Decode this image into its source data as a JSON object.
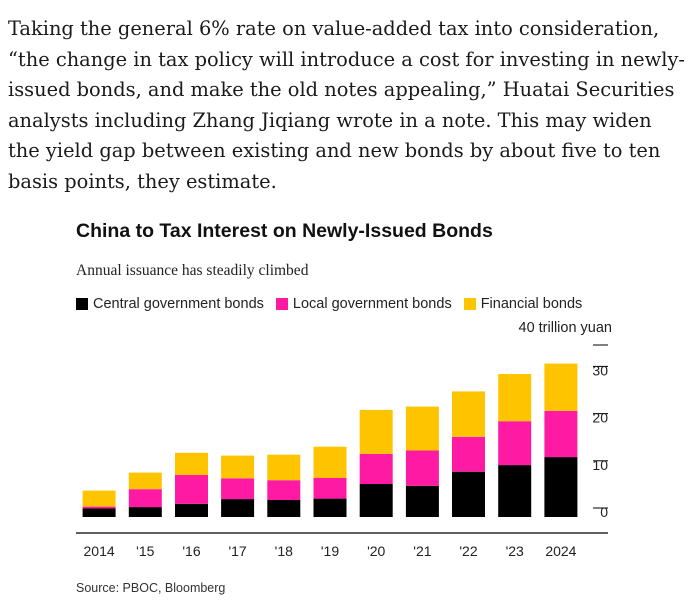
{
  "article": {
    "paragraph": "Taking the general 6% rate on value-added tax into consideration, “the change in tax policy will introduce a cost for investing in newly-issued bonds, and make the old notes appealing,” Huatai Securities analysts including Zhang Jiqiang wrote in a note. This may widen the yield gap between existing and new bonds by about five to ten basis points, they estimate."
  },
  "chart_data": {
    "type": "bar",
    "stacked": true,
    "title": "China to Tax Interest on Newly-Issued Bonds",
    "subtitle": "Annual issuance has steadily climbed",
    "unit_label": "40 trillion yuan",
    "categories": [
      "2014",
      "'15",
      "'16",
      "'17",
      "'18",
      "'19",
      "'20",
      "'21",
      "'22",
      "'23",
      "2024"
    ],
    "series": [
      {
        "name": "Central government bonds",
        "color": "#000000",
        "values": [
          1.8,
          2.1,
          2.8,
          3.8,
          3.6,
          3.9,
          7.0,
          6.6,
          9.6,
          11.0,
          12.7
        ]
      },
      {
        "name": "Local government bonds",
        "color": "#ff1aa3",
        "values": [
          0.4,
          3.8,
          6.1,
          4.4,
          4.2,
          4.4,
          6.4,
          7.5,
          7.4,
          9.3,
          9.8
        ]
      },
      {
        "name": "Financial bonds",
        "color": "#ffc400",
        "values": [
          3.4,
          3.5,
          4.7,
          4.8,
          5.4,
          6.6,
          9.3,
          9.3,
          9.6,
          10.0,
          10.0
        ]
      }
    ],
    "y_ticks": [
      "0",
      "10",
      "20",
      "30"
    ],
    "ylim": [
      -2,
      40
    ],
    "legend_position": "top-left",
    "grid": false,
    "source": "Source: PBOC, Bloomberg"
  }
}
